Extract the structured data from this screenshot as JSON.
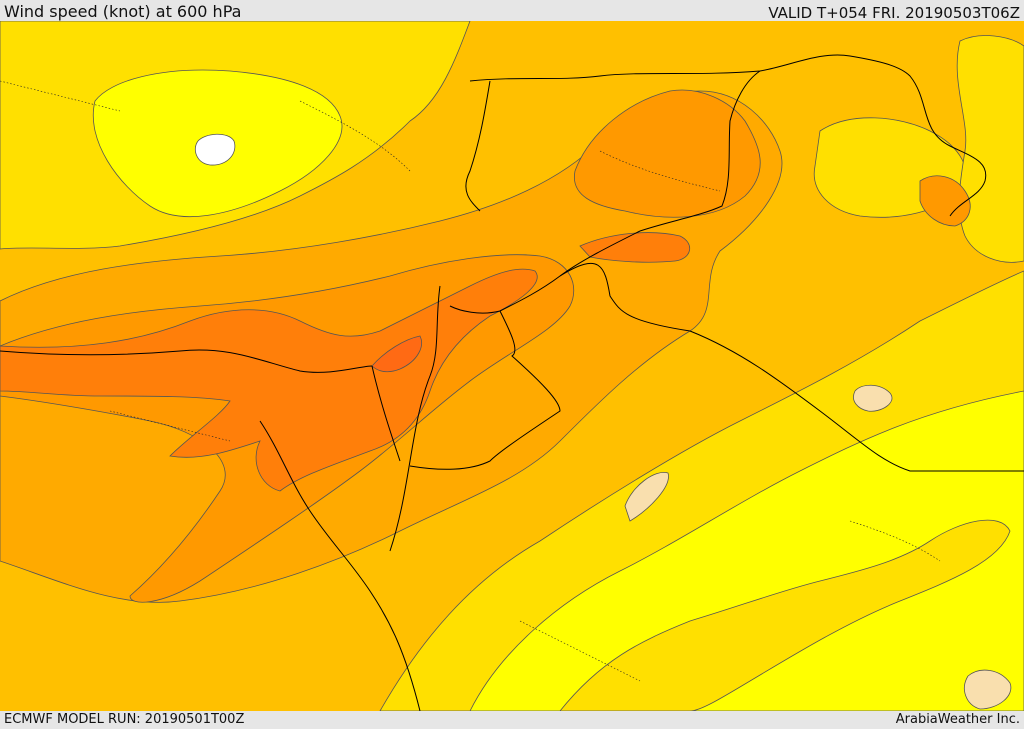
{
  "header": {
    "title": "Wind speed (knot) at 600 hPa",
    "valid": "VALID T+054 FRI. 20190503T06Z"
  },
  "footer": {
    "model_run": "ECMWF MODEL RUN: 20190501T00Z",
    "credit": "ArabiaWeather Inc."
  },
  "colors": {
    "band_white": "#ffffff",
    "band_cream": "#f9dfae",
    "band_yellow": "#ffff00",
    "band_gold": "#ffe000",
    "band_amber": "#ffc000",
    "band_orange_light": "#ffaa00",
    "band_orange": "#ff9900",
    "band_orange_dark": "#ff7f0a",
    "band_red_orange": "#ff6a14",
    "boundary": "#000000"
  }
}
